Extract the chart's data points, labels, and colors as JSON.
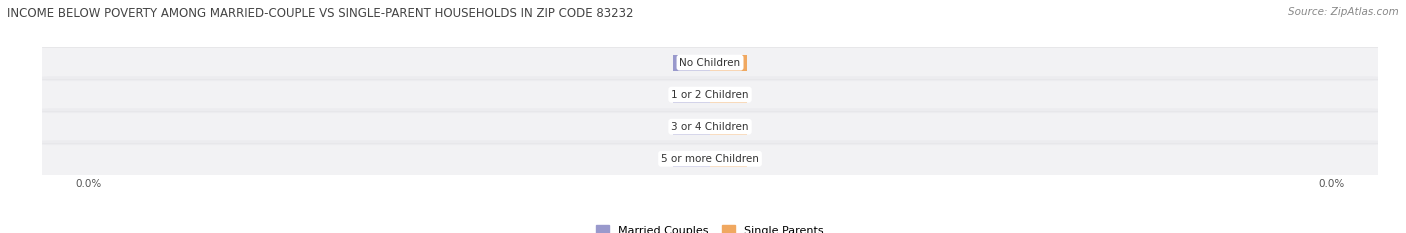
{
  "title": "INCOME BELOW POVERTY AMONG MARRIED-COUPLE VS SINGLE-PARENT HOUSEHOLDS IN ZIP CODE 83232",
  "source": "Source: ZipAtlas.com",
  "categories": [
    "No Children",
    "1 or 2 Children",
    "3 or 4 Children",
    "5 or more Children"
  ],
  "married_values": [
    0.0,
    0.0,
    0.0,
    0.0
  ],
  "single_values": [
    0.0,
    0.0,
    0.0,
    0.0
  ],
  "married_color": "#9999cc",
  "single_color": "#f0a860",
  "row_bg_color": "#e8e8ec",
  "row_bg_alpha": 0.55,
  "bg_color": "#ffffff",
  "bar_height": 0.58,
  "min_bar_width": 0.055,
  "xlim_left": -1.0,
  "xlim_right": 1.0,
  "label_fontsize": 7.0,
  "title_fontsize": 8.5,
  "category_fontsize": 7.5,
  "legend_fontsize": 8.0,
  "source_fontsize": 7.5,
  "tick_fontsize": 7.5
}
